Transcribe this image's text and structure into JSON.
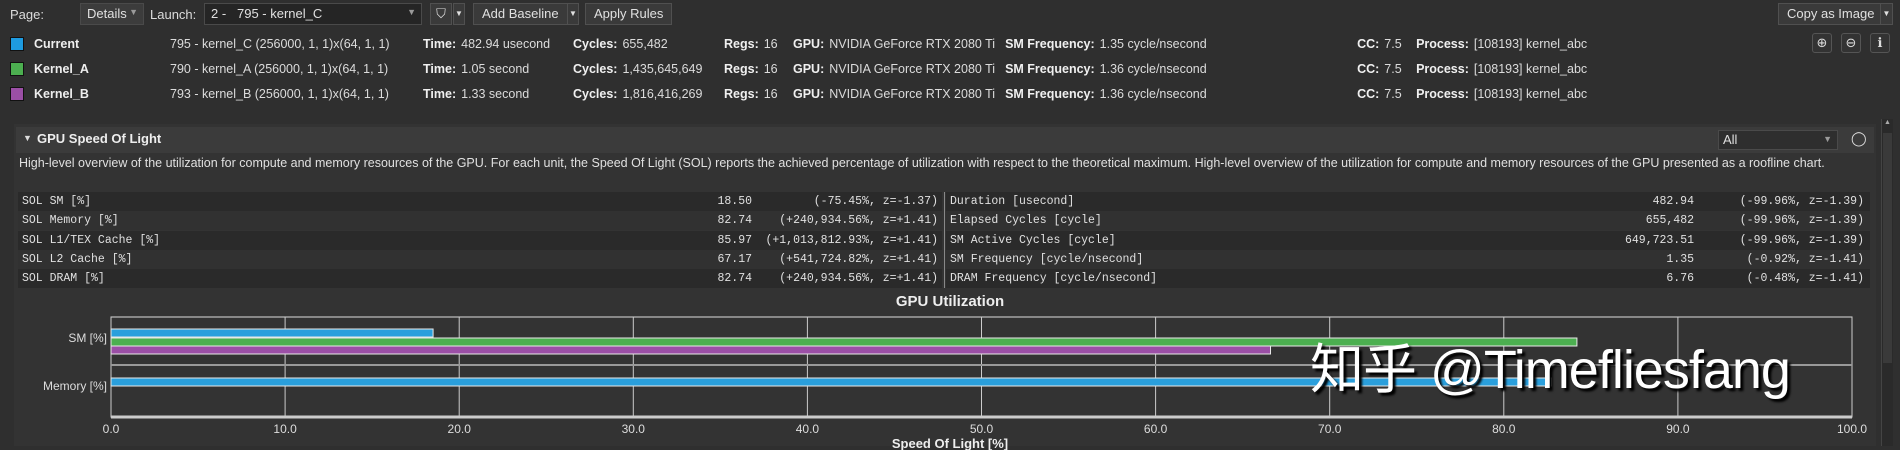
{
  "toolbar": {
    "page_label": "Page:",
    "page_value": "Details",
    "launch_label": "Launch:",
    "launch_value": "2 -   795 - kernel_C",
    "add_baseline": "Add Baseline",
    "apply_rules": "Apply Rules",
    "copy_as_image": "Copy as Image",
    "filter_icon": "filter-icon"
  },
  "results": [
    {
      "name": "Current",
      "color": "#1e9be0",
      "launch": "795 - kernel_C (256000, 1, 1)x(64, 1, 1)",
      "time": "482.94 usecond",
      "cycles": "655,482",
      "regs": "16",
      "gpu": "NVIDIA GeForce RTX 2080 Ti",
      "sm_freq": "1.35 cycle/nsecond",
      "cc": "7.5",
      "process": "[108193] kernel_abc"
    },
    {
      "name": "Kernel_A",
      "color": "#4caf50",
      "launch": "790 - kernel_A (256000, 1, 1)x(64, 1, 1)",
      "time": "1.05 second",
      "cycles": "1,435,645,649",
      "regs": "16",
      "gpu": "NVIDIA GeForce RTX 2080 Ti",
      "sm_freq": "1.36 cycle/nsecond",
      "cc": "7.5",
      "process": "[108193] kernel_abc"
    },
    {
      "name": "Kernel_B",
      "color": "#9b4fa6",
      "launch": "793 - kernel_B (256000, 1, 1)x(64, 1, 1)",
      "time": "1.33 second",
      "cycles": "1,816,416,269",
      "regs": "16",
      "gpu": "NVIDIA GeForce RTX 2080 Ti",
      "sm_freq": "1.36 cycle/nsecond",
      "cc": "7.5",
      "process": "[108193] kernel_abc"
    }
  ],
  "keys": {
    "time": "Time:",
    "cycles": "Cycles:",
    "regs": "Regs:",
    "gpu": "GPU:",
    "sm_freq": "SM Frequency:",
    "cc": "CC:",
    "process": "Process:"
  },
  "section": {
    "title": "GPU Speed Of Light",
    "filter_value": "All",
    "description": "High-level overview of the utilization for compute and memory resources of the GPU. For each unit, the Speed Of Light (SOL) reports the achieved percentage of utilization with respect to the theoretical maximum. High-level overview of the utilization for compute and memory resources of the GPU presented as a roofline chart."
  },
  "left_table": [
    {
      "metric": "SOL SM [%]",
      "value": "18.50",
      "delta": "(-75.45%, z=-1.37)"
    },
    {
      "metric": "SOL Memory [%]",
      "value": "82.74",
      "delta": "(+240,934.56%, z=+1.41)"
    },
    {
      "metric": "SOL L1/TEX Cache [%]",
      "value": "85.97",
      "delta": "(+1,013,812.93%, z=+1.41)"
    },
    {
      "metric": "SOL L2 Cache [%]",
      "value": "67.17",
      "delta": "(+541,724.82%, z=+1.41)"
    },
    {
      "metric": "SOL DRAM [%]",
      "value": "82.74",
      "delta": "(+240,934.56%, z=+1.41)"
    }
  ],
  "right_table": [
    {
      "metric": "Duration [usecond]",
      "value": "482.94",
      "delta": "(-99.96%, z=-1.39)"
    },
    {
      "metric": "Elapsed Cycles [cycle]",
      "value": "655,482",
      "delta": "(-99.96%, z=-1.39)"
    },
    {
      "metric": "SM Active Cycles [cycle]",
      "value": "649,723.51",
      "delta": "(-99.96%, z=-1.39)"
    },
    {
      "metric": "SM Frequency [cycle/nsecond]",
      "value": "1.35",
      "delta": "(-0.92%, z=-1.41)"
    },
    {
      "metric": "DRAM Frequency [cycle/nsecond]",
      "value": "6.76",
      "delta": "(-0.48%, z=-1.41)"
    }
  ],
  "chart_data": {
    "type": "bar",
    "orientation": "horizontal",
    "title": "GPU Utilization",
    "xlabel": "Speed Of Light [%]",
    "ylabel": "",
    "categories": [
      "SM [%]",
      "Memory [%]"
    ],
    "xlim": [
      0,
      100
    ],
    "xticks": [
      "0.0",
      "10.0",
      "20.0",
      "30.0",
      "40.0",
      "50.0",
      "60.0",
      "70.0",
      "80.0",
      "90.0",
      "100.0"
    ],
    "grid": true,
    "series": [
      {
        "name": "Current",
        "color": "#2a9fdc",
        "values": [
          18.5,
          82.74
        ]
      },
      {
        "name": "Kernel_A",
        "color": "#4caf50",
        "values": [
          84.2,
          0
        ]
      },
      {
        "name": "Kernel_B",
        "color": "#9b4fa6",
        "values": [
          66.6,
          0
        ]
      }
    ]
  },
  "watermark": "知乎 @Timefliesfang"
}
